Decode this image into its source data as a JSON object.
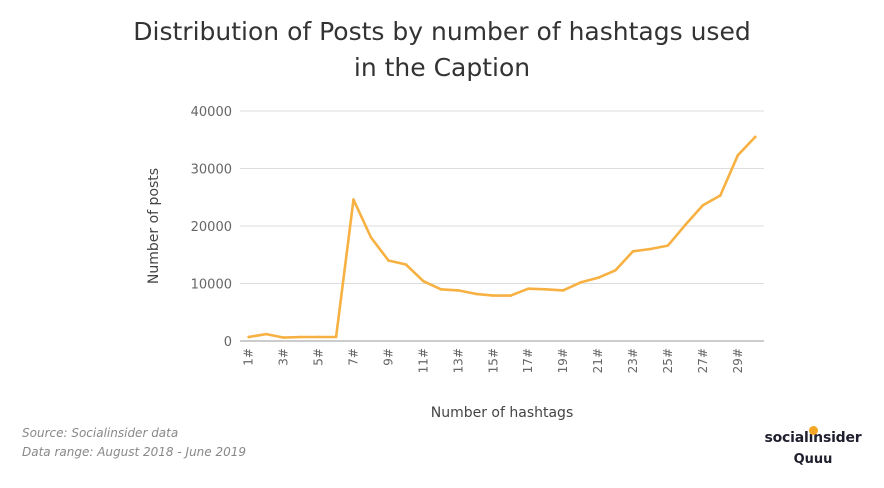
{
  "title": {
    "line1": "Distribution of Posts by number of hashtags used",
    "line2": "in the Caption"
  },
  "source": {
    "line1": "Source: Socialinsider data",
    "line2": "Data range: August 2018 - June 2019"
  },
  "logo": {
    "name": "socialinsider",
    "sub": "Quuu"
  },
  "colors": {
    "line": "#F7B142",
    "grid": "#dddddd"
  },
  "chart_data": {
    "type": "line",
    "xlabel": "Number of hashtags",
    "ylabel": "Number of posts",
    "ylim": [
      0,
      40000
    ],
    "yticks": [
      0,
      10000,
      20000,
      30000,
      40000
    ],
    "grid": true,
    "x": [
      "1#",
      "2#",
      "3#",
      "4#",
      "5#",
      "6#",
      "7#",
      "8#",
      "9#",
      "10#",
      "11#",
      "12#",
      "13#",
      "14#",
      "15#",
      "16#",
      "17#",
      "18#",
      "19#",
      "20#",
      "21#",
      "22#",
      "23#",
      "24#",
      "25#",
      "26#",
      "27#",
      "28#",
      "29#",
      "30#"
    ],
    "x_tick_labels": [
      "1#",
      "3#",
      "5#",
      "7#",
      "9#",
      "11#",
      "13#",
      "15#",
      "17#",
      "19#",
      "21#",
      "23#",
      "25#",
      "27#",
      "29#"
    ],
    "series": [
      {
        "values": [
          700,
          1200,
          600,
          700,
          700,
          700,
          24600,
          18000,
          14000,
          13300,
          10400,
          9000,
          8800,
          8200,
          7900,
          7900,
          9100,
          9000,
          8800,
          10200,
          11000,
          12300,
          15600,
          16000,
          16600,
          20200,
          23600,
          25300,
          32300,
          35500
        ]
      }
    ]
  }
}
